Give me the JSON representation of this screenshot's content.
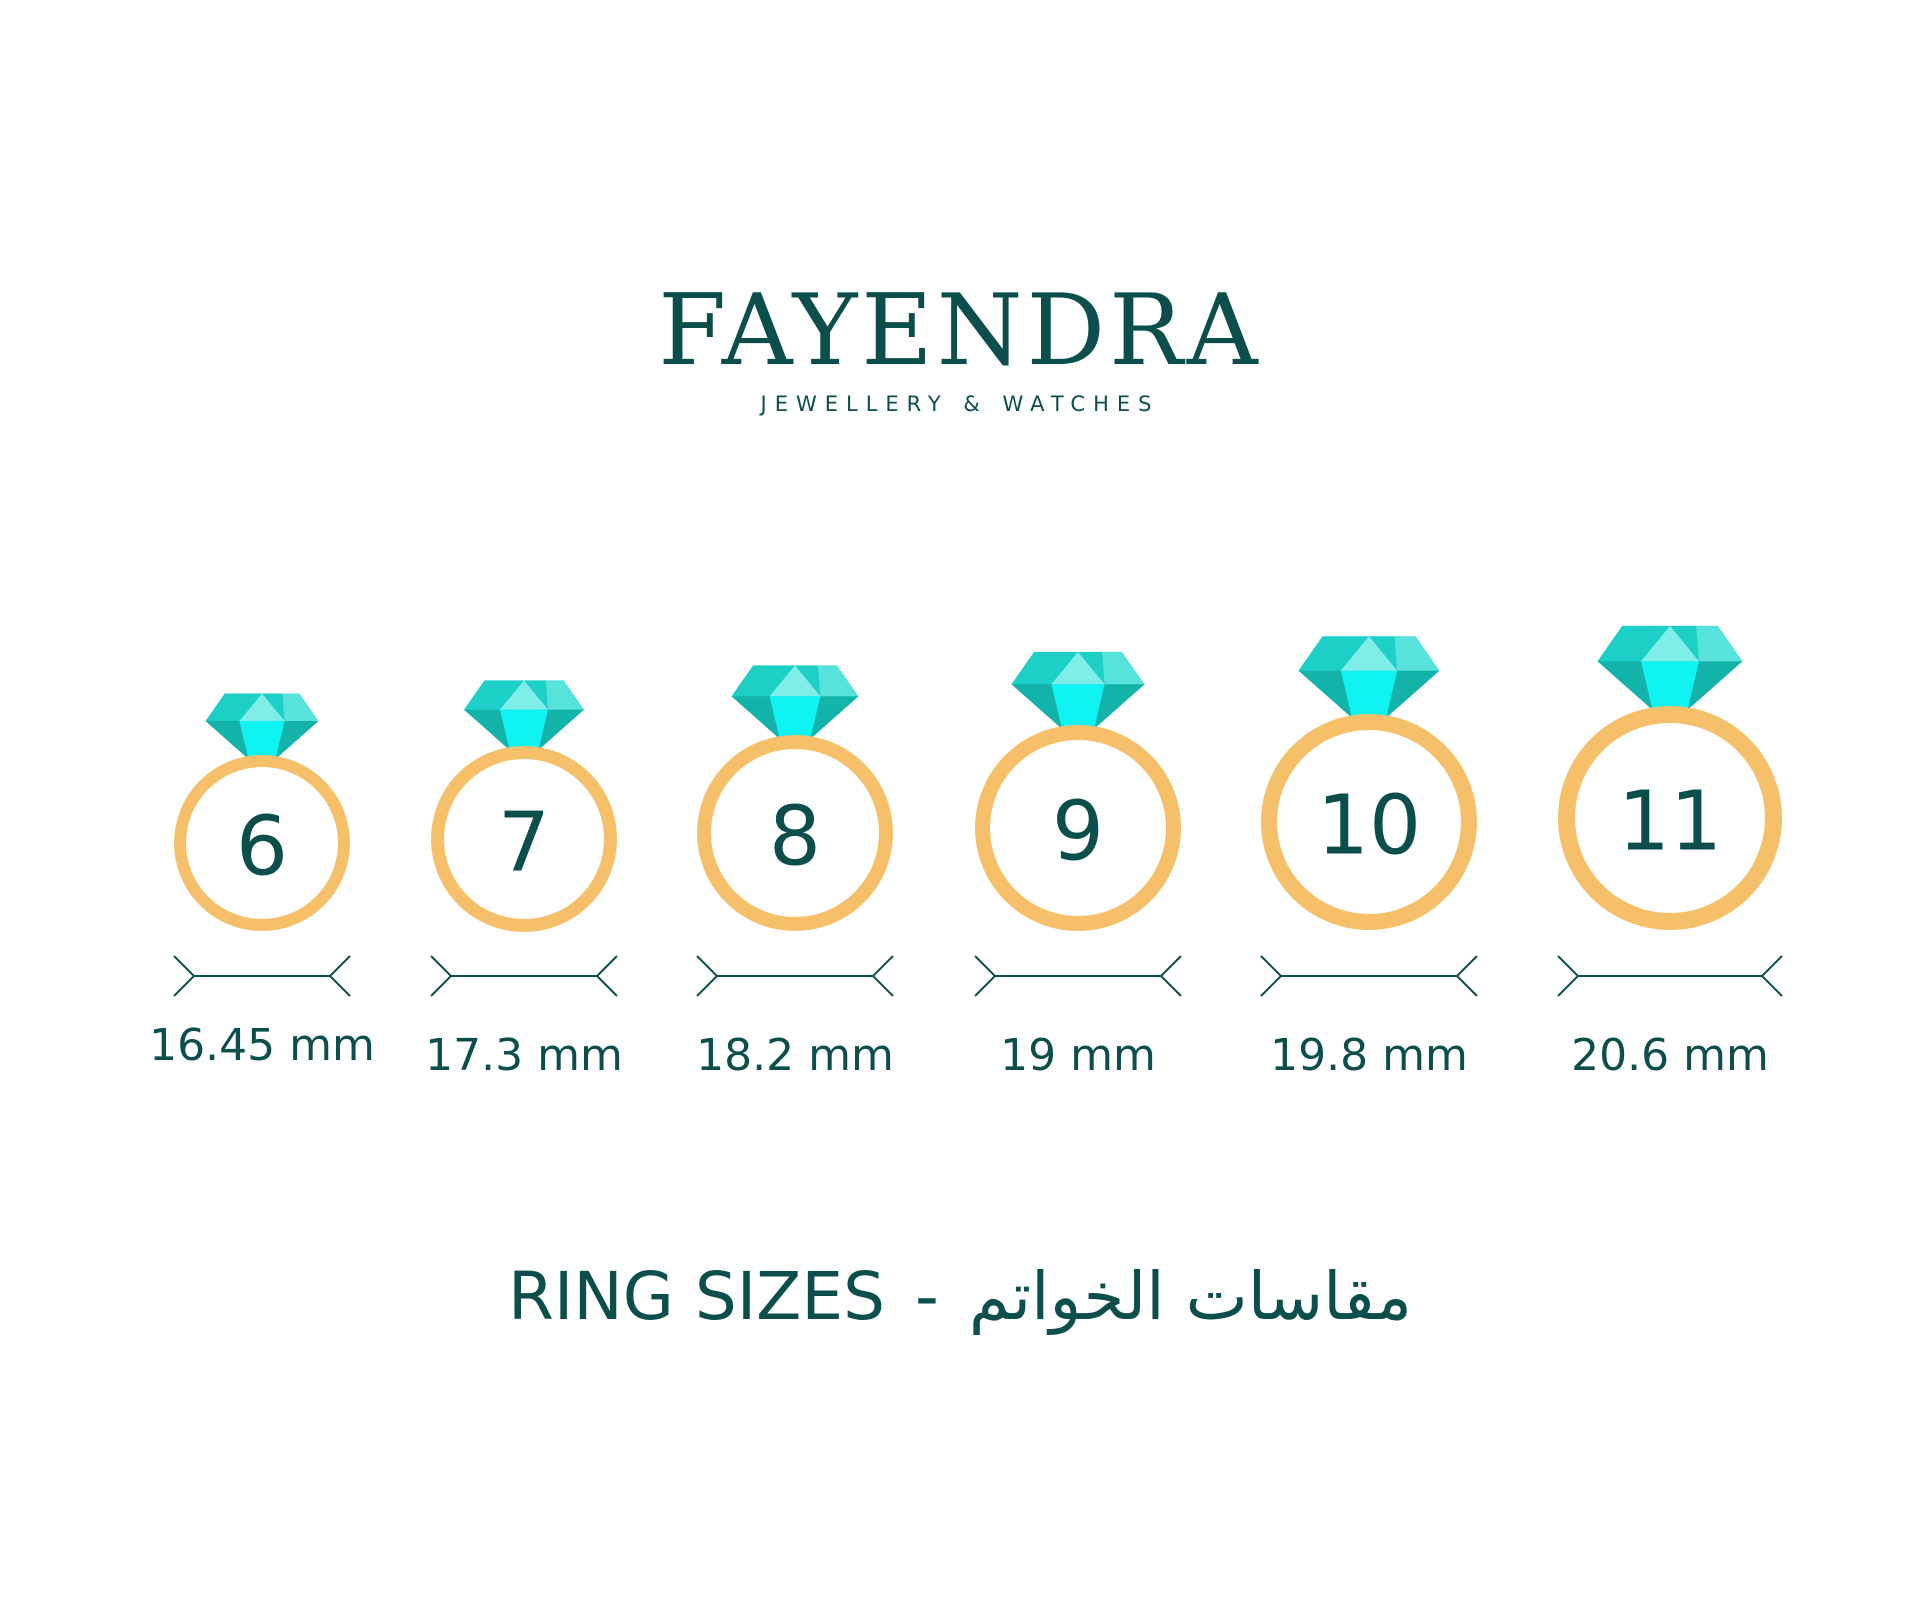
{
  "brand": {
    "name": "FAYENDRA",
    "tagline": "JEWELLERY & WATCHES"
  },
  "colors": {
    "text": "#0b4e4b",
    "ring": "#f6bf69",
    "diamond_main": "#1ccfc7",
    "diamond_light": "#7feee9",
    "diamond_bright": "#0ff3f3",
    "diamond_dark": "#13b3aa"
  },
  "rings": [
    {
      "size": "6",
      "diameter": "16.45 mm"
    },
    {
      "size": "7",
      "diameter": "17.3 mm"
    },
    {
      "size": "8",
      "diameter": "18.2 mm"
    },
    {
      "size": "9",
      "diameter": "19 mm"
    },
    {
      "size": "10",
      "diameter": "19.8 mm"
    },
    {
      "size": "11",
      "diameter": "20.6 mm"
    }
  ],
  "title": {
    "english": "RING SIZES",
    "separator": "-",
    "arabic": "مقاسات الخواتم"
  }
}
